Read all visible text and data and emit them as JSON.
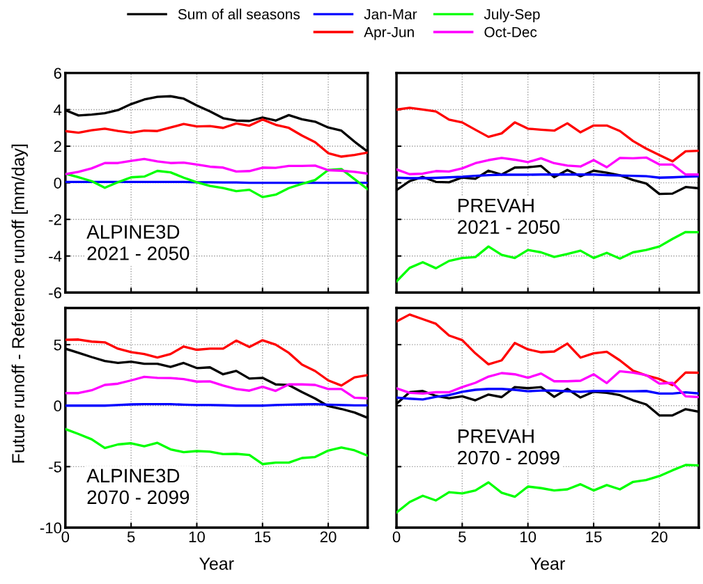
{
  "chart_data": [
    {
      "type": "line",
      "ylabel": "Future runoff - Reference runoff [mm/day]",
      "x": [
        0,
        1,
        2,
        3,
        4,
        5,
        6,
        7,
        8,
        9,
        10,
        11,
        12,
        13,
        14,
        15,
        16,
        17,
        18,
        19,
        20,
        21,
        22,
        23
      ],
      "xlim": [
        0,
        23
      ],
      "xticks": [
        0,
        5,
        10,
        15,
        20
      ],
      "ylim": [
        -6,
        6
      ],
      "yticks": [
        -6,
        -4,
        -2,
        0,
        2,
        4,
        6
      ],
      "grid": true,
      "legend": "top",
      "tick_labels": "y",
      "line_style": "solid",
      "annotations": [
        "ALPINE3D\n2021 - 2050"
      ],
      "series": [
        {
          "name": "Sum of all seasons",
          "color": "#000000",
          "values": [
            3.97,
            3.68,
            3.73,
            3.8,
            3.97,
            4.3,
            4.55,
            4.7,
            4.73,
            4.6,
            4.23,
            3.9,
            3.53,
            3.4,
            3.38,
            3.57,
            3.4,
            3.7,
            3.47,
            3.34,
            3.02,
            2.85,
            2.25,
            1.7
          ]
        },
        {
          "name": "Jan-Mar",
          "color": "#0000ff",
          "values": [
            0.05,
            0.05,
            0.05,
            0.05,
            0.05,
            0.05,
            0.05,
            0.05,
            0.05,
            0.05,
            0.03,
            0.03,
            0.02,
            0.02,
            0.0,
            0.0,
            0.0,
            0.0,
            0.0,
            0.0,
            0.0,
            0.0,
            0.0,
            0.0
          ]
        },
        {
          "name": "Apr-Jun",
          "color": "#ff0000",
          "values": [
            2.82,
            2.74,
            2.87,
            2.96,
            2.83,
            2.74,
            2.85,
            2.83,
            3.02,
            3.21,
            3.08,
            3.1,
            3.0,
            3.24,
            3.12,
            3.46,
            3.17,
            3.0,
            2.58,
            2.22,
            1.62,
            1.43,
            1.52,
            1.65
          ]
        },
        {
          "name": "July-Sep",
          "color": "#00ff00",
          "values": [
            0.5,
            0.3,
            0.09,
            -0.27,
            0.03,
            0.3,
            0.34,
            0.65,
            0.57,
            0.28,
            0.03,
            -0.17,
            -0.29,
            -0.46,
            -0.38,
            -0.78,
            -0.65,
            -0.29,
            -0.06,
            0.15,
            0.7,
            0.75,
            0.2,
            -0.35
          ]
        },
        {
          "name": "Oct-Dec",
          "color": "#ff00ff",
          "values": [
            0.47,
            0.6,
            0.79,
            1.08,
            1.08,
            1.2,
            1.3,
            1.17,
            1.08,
            1.1,
            1.0,
            0.88,
            0.83,
            0.62,
            0.64,
            0.83,
            0.82,
            0.92,
            0.92,
            0.94,
            0.69,
            0.66,
            0.6,
            0.5
          ]
        }
      ]
    },
    {
      "type": "line",
      "x": [
        0,
        1,
        2,
        3,
        4,
        5,
        6,
        7,
        8,
        9,
        10,
        11,
        12,
        13,
        14,
        15,
        16,
        17,
        18,
        19,
        20,
        21,
        22,
        23
      ],
      "xlim": [
        0,
        23
      ],
      "xticks": [
        0,
        5,
        10,
        15,
        20
      ],
      "ylim": [
        -6,
        6
      ],
      "yticks": [
        -6,
        -4,
        -2,
        0,
        2,
        4,
        6
      ],
      "grid": true,
      "tick_labels": false,
      "line_style": "solid",
      "annotations": [
        "PREVAH\n2021 - 2050"
      ],
      "series": [
        {
          "color": "#000000",
          "values": [
            -0.4,
            0.09,
            0.32,
            0.05,
            0.03,
            0.29,
            0.22,
            0.66,
            0.45,
            0.83,
            0.85,
            0.92,
            0.31,
            0.7,
            0.36,
            0.66,
            0.55,
            0.41,
            0.15,
            -0.04,
            -0.61,
            -0.59,
            -0.23,
            -0.3
          ]
        },
        {
          "color": "#0000ff",
          "values": [
            0.28,
            0.25,
            0.25,
            0.27,
            0.3,
            0.33,
            0.38,
            0.42,
            0.44,
            0.44,
            0.44,
            0.45,
            0.45,
            0.45,
            0.45,
            0.45,
            0.42,
            0.4,
            0.38,
            0.36,
            0.28,
            0.3,
            0.33,
            0.35
          ]
        },
        {
          "color": "#ff0000",
          "values": [
            4.0,
            4.1,
            4.0,
            3.9,
            3.45,
            3.3,
            2.9,
            2.51,
            2.7,
            3.3,
            2.96,
            2.9,
            2.85,
            3.25,
            2.76,
            3.13,
            3.13,
            2.83,
            2.28,
            1.87,
            1.52,
            1.17,
            1.72,
            1.75
          ]
        },
        {
          "color": "#00ff00",
          "values": [
            -5.39,
            -4.65,
            -4.34,
            -4.67,
            -4.27,
            -4.11,
            -4.06,
            -3.48,
            -3.94,
            -4.11,
            -3.67,
            -3.8,
            -4.05,
            -3.89,
            -3.71,
            -4.11,
            -3.83,
            -4.14,
            -3.8,
            -3.67,
            -3.48,
            -3.07,
            -2.69,
            -2.7
          ]
        },
        {
          "color": "#ff00ff",
          "values": [
            0.73,
            0.47,
            0.5,
            0.64,
            0.62,
            0.79,
            1.07,
            1.24,
            1.36,
            1.26,
            1.13,
            1.34,
            1.07,
            0.94,
            0.89,
            1.24,
            0.85,
            1.36,
            1.34,
            1.38,
            1.0,
            1.0,
            0.45,
            0.45
          ]
        }
      ]
    },
    {
      "type": "line",
      "xlabel": "Year",
      "x": [
        0,
        1,
        2,
        3,
        4,
        5,
        6,
        7,
        8,
        9,
        10,
        11,
        12,
        13,
        14,
        15,
        16,
        17,
        18,
        19,
        20,
        21,
        22,
        23
      ],
      "xlim": [
        0,
        23
      ],
      "xticks": [
        0,
        5,
        10,
        15,
        20
      ],
      "ylim": [
        -10,
        8
      ],
      "yticks": [
        -10,
        -5,
        0,
        5
      ],
      "grid": true,
      "line_style": "solid",
      "annotations": [
        "ALPINE3D\n2070 - 2099"
      ],
      "series": [
        {
          "color": "#000000",
          "values": [
            4.67,
            4.33,
            3.98,
            3.66,
            3.5,
            3.6,
            3.43,
            3.43,
            3.18,
            3.5,
            3.08,
            3.14,
            2.57,
            2.85,
            2.22,
            2.28,
            1.74,
            1.69,
            1.11,
            0.59,
            -0.04,
            -0.27,
            -0.56,
            -1.0
          ]
        },
        {
          "color": "#0000ff",
          "values": [
            0.0,
            0.0,
            0.0,
            0.0,
            0.05,
            0.1,
            0.12,
            0.12,
            0.12,
            0.08,
            0.05,
            0.05,
            0.03,
            0.0,
            0.0,
            0.0,
            0.05,
            0.08,
            0.1,
            0.12,
            0.08,
            0.05,
            0.02,
            0.02
          ]
        },
        {
          "color": "#ff0000",
          "values": [
            5.4,
            5.42,
            5.25,
            5.19,
            4.67,
            4.39,
            4.23,
            3.95,
            4.23,
            4.85,
            4.58,
            4.67,
            4.67,
            5.33,
            4.81,
            5.36,
            5.0,
            4.33,
            3.37,
            2.84,
            2.07,
            1.65,
            2.32,
            2.5
          ]
        },
        {
          "color": "#00ff00",
          "values": [
            -1.92,
            -2.32,
            -2.76,
            -3.47,
            -3.18,
            -3.08,
            -3.33,
            -3.05,
            -3.58,
            -3.81,
            -3.72,
            -3.77,
            -3.97,
            -3.95,
            -4.04,
            -4.79,
            -4.67,
            -4.67,
            -4.29,
            -4.21,
            -3.68,
            -3.43,
            -3.66,
            -4.1
          ]
        },
        {
          "color": "#ff00ff",
          "values": [
            1.03,
            1.03,
            1.26,
            1.7,
            1.8,
            2.07,
            2.36,
            2.28,
            2.26,
            2.18,
            1.97,
            1.99,
            1.65,
            1.36,
            1.23,
            1.55,
            1.21,
            1.74,
            1.74,
            1.7,
            1.36,
            1.36,
            0.65,
            0.6
          ]
        }
      ]
    },
    {
      "type": "line",
      "xlabel": "Year",
      "x": [
        0,
        1,
        2,
        3,
        4,
        5,
        6,
        7,
        8,
        9,
        10,
        11,
        12,
        13,
        14,
        15,
        16,
        17,
        18,
        19,
        20,
        21,
        22,
        23
      ],
      "xlim": [
        0,
        23
      ],
      "xticks": [
        0,
        5,
        10,
        15,
        20
      ],
      "ylim": [
        -10,
        8
      ],
      "yticks": [
        -10,
        -5,
        0,
        5
      ],
      "grid": true,
      "tick_labels": "x",
      "line_style": "solid",
      "annotations": [
        "PREVAH\n2070 - 2099"
      ],
      "series": [
        {
          "color": "#000000",
          "values": [
            0.15,
            1.1,
            1.2,
            0.8,
            0.61,
            0.76,
            0.44,
            0.91,
            0.7,
            1.52,
            1.43,
            1.52,
            0.72,
            1.37,
            0.67,
            1.14,
            1.05,
            0.86,
            0.44,
            0.1,
            -0.8,
            -0.8,
            -0.29,
            -0.5
          ]
        },
        {
          "color": "#0000ff",
          "values": [
            0.67,
            0.57,
            0.51,
            0.72,
            0.86,
            1.14,
            1.3,
            1.37,
            1.37,
            1.3,
            1.18,
            1.24,
            1.24,
            1.18,
            1.14,
            1.2,
            1.2,
            1.18,
            1.18,
            1.2,
            0.99,
            0.99,
            1.09,
            1.0
          ]
        },
        {
          "color": "#ff0000",
          "values": [
            6.9,
            7.47,
            7.09,
            6.71,
            5.75,
            5.37,
            4.29,
            3.39,
            3.71,
            5.14,
            4.61,
            4.38,
            4.44,
            5.09,
            3.94,
            4.29,
            4.42,
            3.71,
            2.86,
            2.48,
            2.19,
            1.68,
            2.72,
            2.7
          ]
        },
        {
          "color": "#00ff00",
          "values": [
            -8.76,
            -7.9,
            -7.39,
            -7.77,
            -7.09,
            -7.2,
            -6.95,
            -6.29,
            -7.14,
            -7.47,
            -6.63,
            -6.76,
            -6.95,
            -6.86,
            -6.44,
            -6.95,
            -6.51,
            -6.86,
            -6.25,
            -6.1,
            -5.77,
            -5.3,
            -4.86,
            -4.9
          ]
        },
        {
          "color": "#ff00ff",
          "values": [
            1.43,
            1.05,
            0.99,
            1.1,
            1.1,
            1.52,
            1.87,
            2.38,
            2.67,
            2.57,
            2.29,
            2.63,
            2.0,
            2.0,
            2.04,
            2.57,
            1.85,
            2.82,
            2.7,
            2.51,
            1.81,
            1.87,
            0.76,
            0.7
          ]
        }
      ]
    }
  ]
}
